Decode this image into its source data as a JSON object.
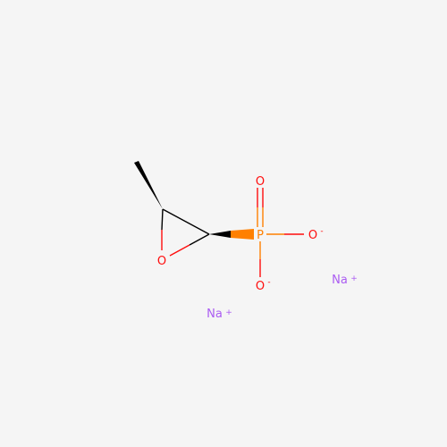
{
  "molecule": {
    "atoms": {
      "oxygen_ring": {
        "symbol": "O",
        "color": "#ff0d0d"
      },
      "phosphorus": {
        "symbol": "P",
        "color": "#ff8000"
      },
      "oxygen_double": {
        "symbol": "O",
        "color": "#ff0d0d"
      },
      "oxygen_right": {
        "symbol": "O",
        "charge": "-",
        "color": "#ff0d0d"
      },
      "oxygen_bottom": {
        "symbol": "O",
        "charge": "-",
        "color": "#ff0d0d"
      }
    },
    "counterions": [
      {
        "symbol": "Na",
        "charge": "+",
        "color": "#ab5cf2"
      },
      {
        "symbol": "Na",
        "charge": "+",
        "color": "#ab5cf2"
      }
    ],
    "colors": {
      "bond": "#000000",
      "background": "#f5f5f5"
    }
  }
}
